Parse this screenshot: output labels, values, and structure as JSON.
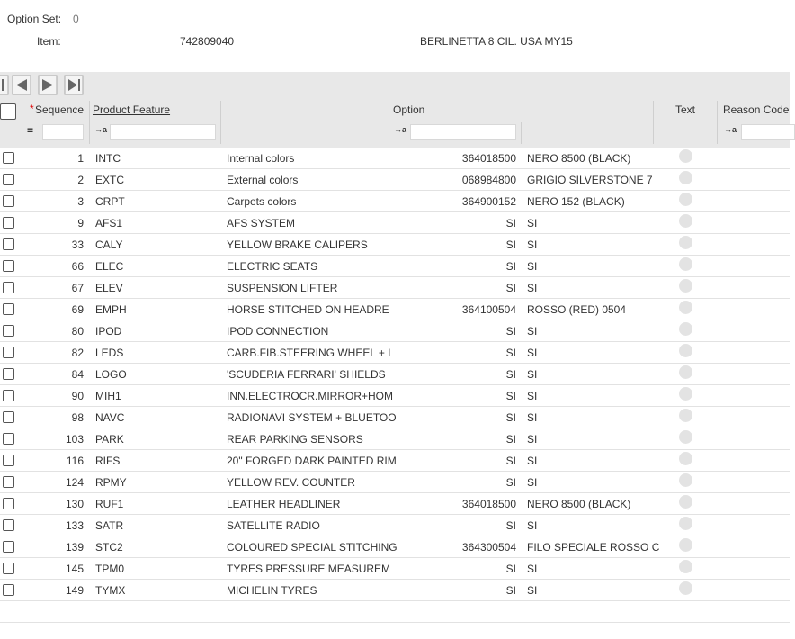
{
  "header": {
    "option_set_label": "Option Set:",
    "option_set_value": "0",
    "item_label": "Item:",
    "item_value": "742809040",
    "item_description": "BERLINETTA 8 CIL. USA  MY15"
  },
  "table": {
    "columns": {
      "required_mark": "*",
      "sequence": "Sequence",
      "product_feature": "Product Feature",
      "option": "Option",
      "text": "Text",
      "reason_code": "Reason Code"
    },
    "filter_icons": {
      "equals": "=",
      "contains": "→a"
    },
    "rows": [
      [
        "1",
        "INTC",
        "Internal colors",
        "364018500",
        "NERO 8500 (BLACK)"
      ],
      [
        "2",
        "EXTC",
        "External colors",
        "068984800",
        "GRIGIO SILVERSTONE 7"
      ],
      [
        "3",
        "CRPT",
        "Carpets colors",
        "364900152",
        "NERO 152 (BLACK)"
      ],
      [
        "9",
        "AFS1",
        "AFS SYSTEM",
        "SI",
        "SI"
      ],
      [
        "33",
        "CALY",
        "YELLOW BRAKE CALIPERS",
        "SI",
        "SI"
      ],
      [
        "66",
        "ELEC",
        "ELECTRIC SEATS",
        "SI",
        "SI"
      ],
      [
        "67",
        "ELEV",
        "SUSPENSION LIFTER",
        "SI",
        "SI"
      ],
      [
        "69",
        "EMPH",
        "HORSE STITCHED ON HEADRE",
        "364100504",
        "ROSSO (RED) 0504"
      ],
      [
        "80",
        "IPOD",
        "IPOD CONNECTION",
        "SI",
        "SI"
      ],
      [
        "82",
        "LEDS",
        "CARB.FIB.STEERING WHEEL + L",
        "SI",
        "SI"
      ],
      [
        "84",
        "LOGO",
        "'SCUDERIA FERRARI' SHIELDS",
        "SI",
        "SI"
      ],
      [
        "90",
        "MIH1",
        "INN.ELECTROCR.MIRROR+HOM",
        "SI",
        "SI"
      ],
      [
        "98",
        "NAVC",
        "RADIONAVI SYSTEM + BLUETOO",
        "SI",
        "SI"
      ],
      [
        "103",
        "PARK",
        "REAR PARKING SENSORS",
        "SI",
        "SI"
      ],
      [
        "116",
        "RIFS",
        "20\" FORGED DARK PAINTED RIM",
        "SI",
        "SI"
      ],
      [
        "124",
        "RPMY",
        "YELLOW REV. COUNTER",
        "SI",
        "SI"
      ],
      [
        "130",
        "RUF1",
        "LEATHER HEADLINER",
        "364018500",
        "NERO 8500 (BLACK)"
      ],
      [
        "133",
        "SATR",
        "SATELLITE RADIO",
        "SI",
        "SI"
      ],
      [
        "139",
        "STC2",
        "COLOURED SPECIAL STITCHING",
        "364300504",
        "FILO SPECIALE ROSSO C"
      ],
      [
        "145",
        "TPM0",
        "TYRES PRESSURE MEASUREM",
        "SI",
        "SI"
      ],
      [
        "149",
        "TYMX",
        "MICHELIN TYRES",
        "SI",
        "SI"
      ]
    ]
  }
}
